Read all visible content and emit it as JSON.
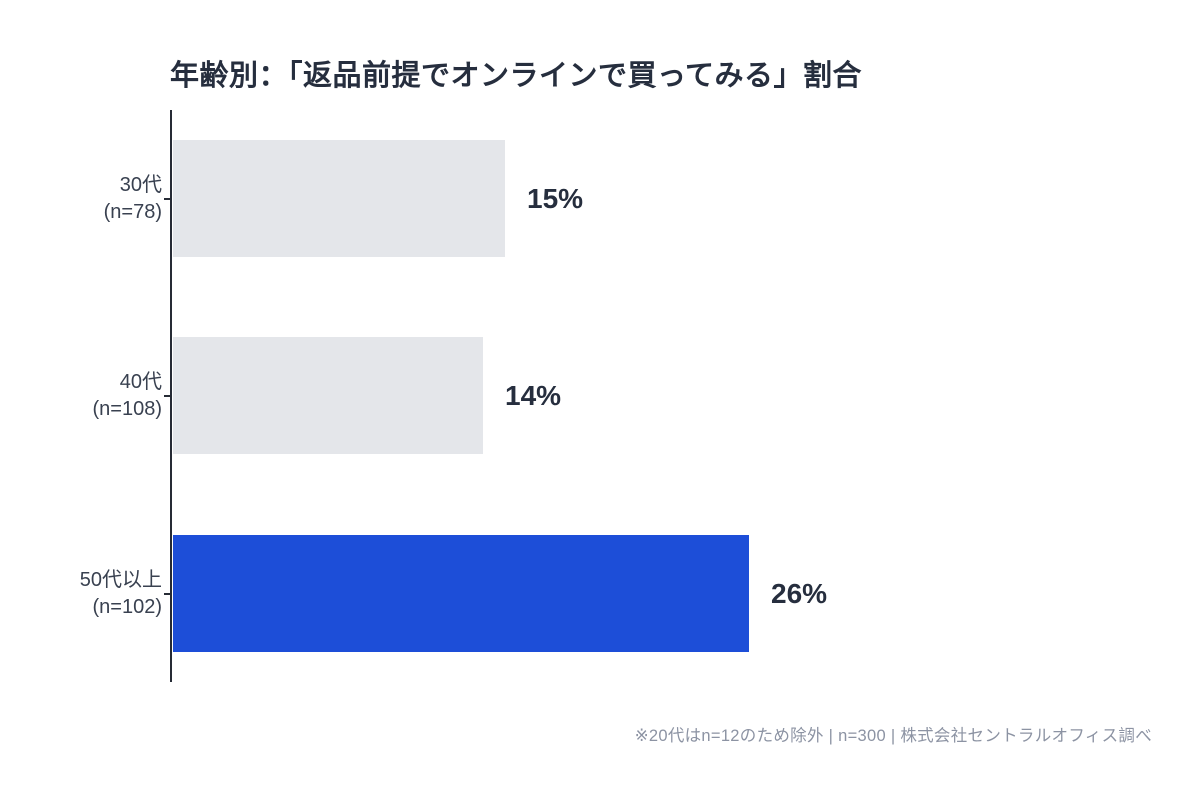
{
  "chart_data": {
    "type": "bar",
    "orientation": "horizontal",
    "title": "年齢別：「返品前提でオンラインで買ってみる」割合",
    "categories": [
      "30代",
      "40代",
      "50代以上"
    ],
    "category_sublabels": [
      "(n=78)",
      "(n=108)",
      "(n=102)"
    ],
    "values": [
      15,
      14,
      26
    ],
    "value_labels": [
      "15%",
      "14%",
      "26%"
    ],
    "series_name": "返品前提でオンラインで買ってみる割合",
    "xlim": [
      0,
      26
    ],
    "grid": false,
    "legend": false,
    "highlight_index": 2,
    "footnote": "※20代はn=12のため除外 | n=300 | 株式会社セントラルオフィス調べ"
  },
  "colors": {
    "bar_default": "#e4e6ea",
    "bar_highlight": "#1d4ed8",
    "axis": "#262b35",
    "title_text": "#262e3e",
    "category_text": "#394150",
    "value_text": "#262e3e",
    "footnote_text": "#8c93a3",
    "background": "#ffffff"
  }
}
